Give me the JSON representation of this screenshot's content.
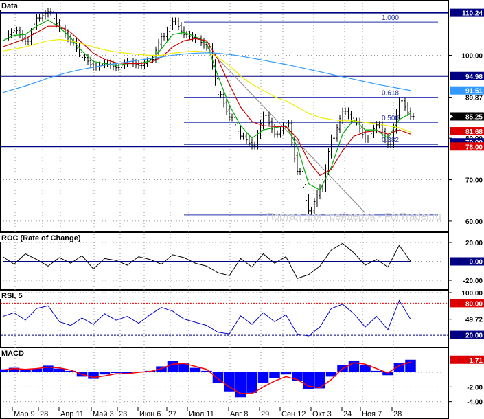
{
  "chart_data": [
    {
      "type": "candlestick",
      "panel": "Data",
      "title": "Data",
      "ylim": [
        58,
        112
      ],
      "yticks": [
        60.0,
        70.0,
        100.0
      ],
      "last_price": 85.25,
      "x_categories": [
        "Мар 9",
        "28",
        "Апр 11",
        "Май 3",
        "23",
        "Июн 6",
        "27",
        "Июл 11",
        "Авг 8",
        "29",
        "Сен 12",
        "Окт 3",
        "24",
        "Ноя 7",
        "28"
      ],
      "price_close": [
        104.5,
        106.0,
        103.4,
        109.0,
        110.5,
        106.5,
        103.2,
        99.5,
        97.2,
        98.1,
        97.0,
        98.5,
        97.5,
        99.0,
        104.5,
        108.2,
        105.0,
        103.9,
        102.0,
        90.5,
        85.0,
        80.5,
        78.2,
        85.5,
        81.0,
        83.5,
        72.0,
        62.5,
        68.0,
        80.0,
        86.5,
        84.0,
        79.8,
        83.2,
        78.5,
        89.0,
        85.25
      ],
      "overlays": [
        {
          "name": "MA fast",
          "color": "#00aa00",
          "values": [
            103.5,
            104.8,
            105.0,
            107.0,
            108.5,
            106.8,
            104.2,
            101.0,
            98.5,
            98.0,
            97.5,
            98.0,
            98.0,
            98.6,
            101.5,
            105.0,
            105.5,
            104.5,
            103.0,
            95.0,
            88.0,
            83.0,
            80.0,
            82.0,
            82.5,
            83.0,
            78.0,
            69.0,
            67.5,
            73.0,
            81.0,
            84.5,
            82.0,
            82.0,
            80.0,
            84.5,
            86.0
          ]
        },
        {
          "name": "MA medium",
          "color": "#cc0000",
          "values": [
            102.0,
            103.0,
            104.0,
            105.5,
            107.0,
            107.0,
            105.5,
            103.0,
            100.5,
            99.0,
            98.2,
            98.0,
            98.0,
            98.2,
            99.5,
            102.0,
            103.5,
            104.0,
            103.5,
            99.0,
            93.0,
            87.5,
            84.0,
            83.0,
            82.8,
            82.8,
            80.0,
            74.5,
            71.0,
            72.5,
            77.0,
            80.5,
            81.5,
            81.8,
            81.0,
            82.0,
            81.0
          ]
        },
        {
          "name": "MA slow",
          "color": "#eeee00",
          "values": [
            101.0,
            101.5,
            102.0,
            102.8,
            103.5,
            103.8,
            103.5,
            102.8,
            102.0,
            101.3,
            100.8,
            100.5,
            100.2,
            100.0,
            100.0,
            100.5,
            100.8,
            101.0,
            100.8,
            99.5,
            97.5,
            95.0,
            93.0,
            91.5,
            90.0,
            89.0,
            87.5,
            86.0,
            85.0,
            84.5,
            84.2,
            84.2,
            83.8,
            83.5,
            83.0,
            82.5,
            81.5
          ]
        },
        {
          "name": "MA very slow",
          "color": "#3399ff",
          "values": [
            91.0,
            91.8,
            92.6,
            93.5,
            94.5,
            95.3,
            96.0,
            96.6,
            97.1,
            97.6,
            98.0,
            98.4,
            98.8,
            99.2,
            99.6,
            100.0,
            100.3,
            100.5,
            100.6,
            100.5,
            100.2,
            99.8,
            99.3,
            98.8,
            98.3,
            97.8,
            97.2,
            96.6,
            96.0,
            95.4,
            94.8,
            94.2,
            93.6,
            93.0,
            92.5,
            92.0,
            91.5
          ]
        }
      ],
      "horizontal_lines": [
        {
          "y": 110.24,
          "color": "#000080"
        },
        {
          "y": 94.98,
          "color": "#000080"
        },
        {
          "y": 78.0,
          "color": "#000080"
        }
      ],
      "fibonacci_levels": [
        {
          "label": "1.000",
          "y": 108.0
        },
        {
          "label": "0.618",
          "y": 89.87
        },
        {
          "label": "0.500",
          "y": 83.8
        },
        {
          "label": "0.382",
          "y": 78.5
        },
        {
          "label": "",
          "y": 61.5
        }
      ],
      "right_axis_labels": [
        {
          "text": "110.24",
          "y": 110.24,
          "style": "blue"
        },
        {
          "text": "100.00",
          "y": 100.0,
          "style": "plain"
        },
        {
          "text": "94.98",
          "y": 94.98,
          "style": "blue"
        },
        {
          "text": "91.51",
          "y": 91.51,
          "style": "lightblue"
        },
        {
          "text": "89.87",
          "y": 89.87,
          "style": "plain"
        },
        {
          "text": "85.25",
          "y": 85.25,
          "style": "price"
        },
        {
          "text": "81.68",
          "y": 81.68,
          "style": "red"
        },
        {
          "text": "80.00",
          "y": 80.0,
          "style": "plain"
        },
        {
          "text": "79.00",
          "y": 79.0,
          "style": "blue"
        },
        {
          "text": "78.00",
          "y": 78.0,
          "style": "red"
        },
        {
          "text": "70.00",
          "y": 70.0,
          "style": "plain"
        },
        {
          "text": "60.00",
          "y": 60.0,
          "style": "plain"
        }
      ],
      "watermark": "Портал для трейдеров - ForTrader.ru"
    },
    {
      "type": "line",
      "panel": "ROC",
      "title": "ROC (Rate of Change)",
      "ylim": [
        -28,
        28
      ],
      "yticks": [
        20.0,
        0.0,
        -20.0
      ],
      "series": [
        {
          "color": "#000000",
          "values": [
            5,
            -3,
            8,
            2,
            -5,
            4,
            -2,
            6,
            -8,
            3,
            1,
            -4,
            5,
            2,
            -3,
            7,
            4,
            -2,
            -5,
            -12,
            -15,
            3,
            -6,
            8,
            -2,
            5,
            -18,
            -14,
            -5,
            12,
            19,
            9,
            -4,
            2,
            -6,
            17,
            0
          ]
        },
        {
          "color": "#000080",
          "values": [
            0,
            0,
            0,
            0,
            0,
            0,
            0,
            0,
            0,
            0,
            0,
            0,
            0,
            0,
            0,
            0,
            0,
            0,
            0,
            0,
            0,
            0,
            0,
            0,
            0,
            0,
            0,
            0,
            0,
            0,
            0,
            0,
            0,
            0,
            0,
            0,
            0
          ]
        }
      ],
      "right_axis_labels": [
        {
          "text": "20.00",
          "y": 20.0,
          "style": "plain"
        },
        {
          "text": "0.00",
          "y": 0.0,
          "style": "blue"
        },
        {
          "text": "-20.00",
          "y": -20.0,
          "style": "plain"
        }
      ]
    },
    {
      "type": "line",
      "panel": "RSI",
      "title": "RSI, 5",
      "ylim": [
        0,
        100
      ],
      "yticks": [
        100.0,
        80.0,
        20.0
      ],
      "reference_lines": [
        {
          "y": 80,
          "color": "#ff0000"
        },
        {
          "y": 20,
          "color": "#000080"
        }
      ],
      "series": [
        {
          "color": "#0000cc",
          "values": [
            55,
            62,
            48,
            70,
            75,
            45,
            38,
            52,
            40,
            60,
            48,
            55,
            42,
            58,
            72,
            65,
            50,
            44,
            38,
            25,
            22,
            56,
            40,
            62,
            45,
            58,
            22,
            18,
            35,
            70,
            78,
            60,
            35,
            55,
            30,
            85,
            49.72
          ]
        }
      ],
      "right_axis_labels": [
        {
          "text": "100.00",
          "y": 100.0,
          "style": "plain"
        },
        {
          "text": "80.00",
          "y": 80.0,
          "style": "red"
        },
        {
          "text": "49.72",
          "y": 49.72,
          "style": "plain"
        },
        {
          "text": "20.00",
          "y": 20.0,
          "style": "blue"
        }
      ]
    },
    {
      "type": "bar",
      "panel": "MACD",
      "title": "MACD",
      "ylim": [
        -4.5,
        3.0
      ],
      "yticks": [
        -2.0,
        -4.0
      ],
      "series": [
        {
          "name": "",
          "color": "#0000ff",
          "values": [
            0.4,
            0.6,
            0.3,
            0.5,
            0.9,
            0.5,
            0.2,
            -0.6,
            -0.9,
            -0.3,
            -0.1,
            -0.2,
            0.1,
            0.2,
            0.8,
            1.5,
            1.2,
            0.6,
            0.2,
            -1.5,
            -2.6,
            -3.4,
            -2.8,
            -1.5,
            -0.8,
            -0.3,
            -1.2,
            -2.3,
            -2.2,
            -0.6,
            1.0,
            1.6,
            1.0,
            0.2,
            -0.4,
            1.3,
            1.71
          ]
        },
        {
          "name": "",
          "color": "#ff0000",
          "values": [
            0.3,
            0.5,
            0.4,
            0.5,
            0.7,
            0.6,
            0.3,
            -0.3,
            -0.7,
            -0.5,
            -0.2,
            -0.2,
            0.0,
            0.1,
            0.5,
            1.1,
            1.2,
            0.8,
            0.4,
            -0.9,
            -2.0,
            -2.9,
            -2.9,
            -2.0,
            -1.2,
            -0.6,
            -1.0,
            -1.9,
            -2.1,
            -1.0,
            0.5,
            1.3,
            1.1,
            0.5,
            -0.1,
            0.9,
            1.4
          ]
        }
      ],
      "right_axis_labels": [
        {
          "text": "1.71",
          "y": 1.71,
          "style": "red"
        },
        {
          "text": "-2.00",
          "y": -2.0,
          "style": "plain"
        },
        {
          "text": "-4.00",
          "y": -4.0,
          "style": "plain"
        }
      ]
    }
  ]
}
